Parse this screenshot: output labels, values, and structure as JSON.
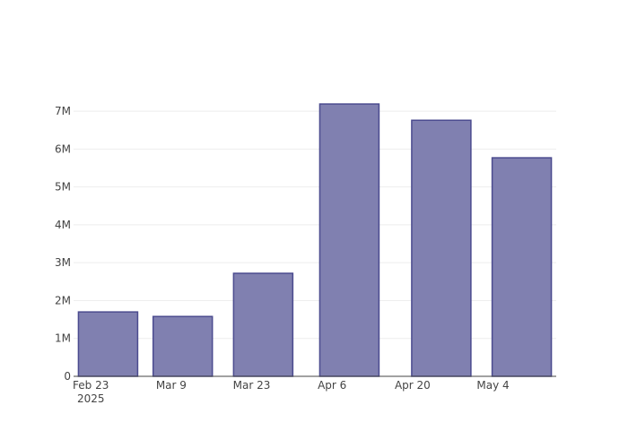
{
  "chart_data": {
    "type": "bar",
    "x": [
      "2025-02-26",
      "2025-03-11",
      "2025-03-25",
      "2025-04-09",
      "2025-04-25",
      "2025-05-09"
    ],
    "values": [
      1700000,
      1580000,
      2720000,
      7190000,
      6760000,
      5770000
    ],
    "color": "#8080b0",
    "edge_color": "#4b4b8f",
    "xlim": [
      "2025-02-20",
      "2025-05-15"
    ],
    "xticks": [
      {
        "value": "2025-02-23",
        "label": "Feb 23\n2025"
      },
      {
        "value": "2025-03-09",
        "label": "Mar 9"
      },
      {
        "value": "2025-03-23",
        "label": "Mar 23"
      },
      {
        "value": "2025-04-06",
        "label": "Apr 6"
      },
      {
        "value": "2025-04-20",
        "label": "Apr 20"
      },
      {
        "value": "2025-05-04",
        "label": "May 4"
      }
    ],
    "ylim": [
      0,
      7570000
    ],
    "yticks": [
      0,
      {
        "value": 1000000,
        "label": "1M"
      },
      {
        "value": 2000000,
        "label": "2M"
      },
      {
        "value": 3000000,
        "label": "3M"
      },
      {
        "value": 4000000,
        "label": "4M"
      },
      {
        "value": 5000000,
        "label": "5M"
      },
      {
        "value": 6000000,
        "label": "6M"
      },
      {
        "value": 7000000,
        "label": "7M"
      }
    ],
    "grid": true
  }
}
